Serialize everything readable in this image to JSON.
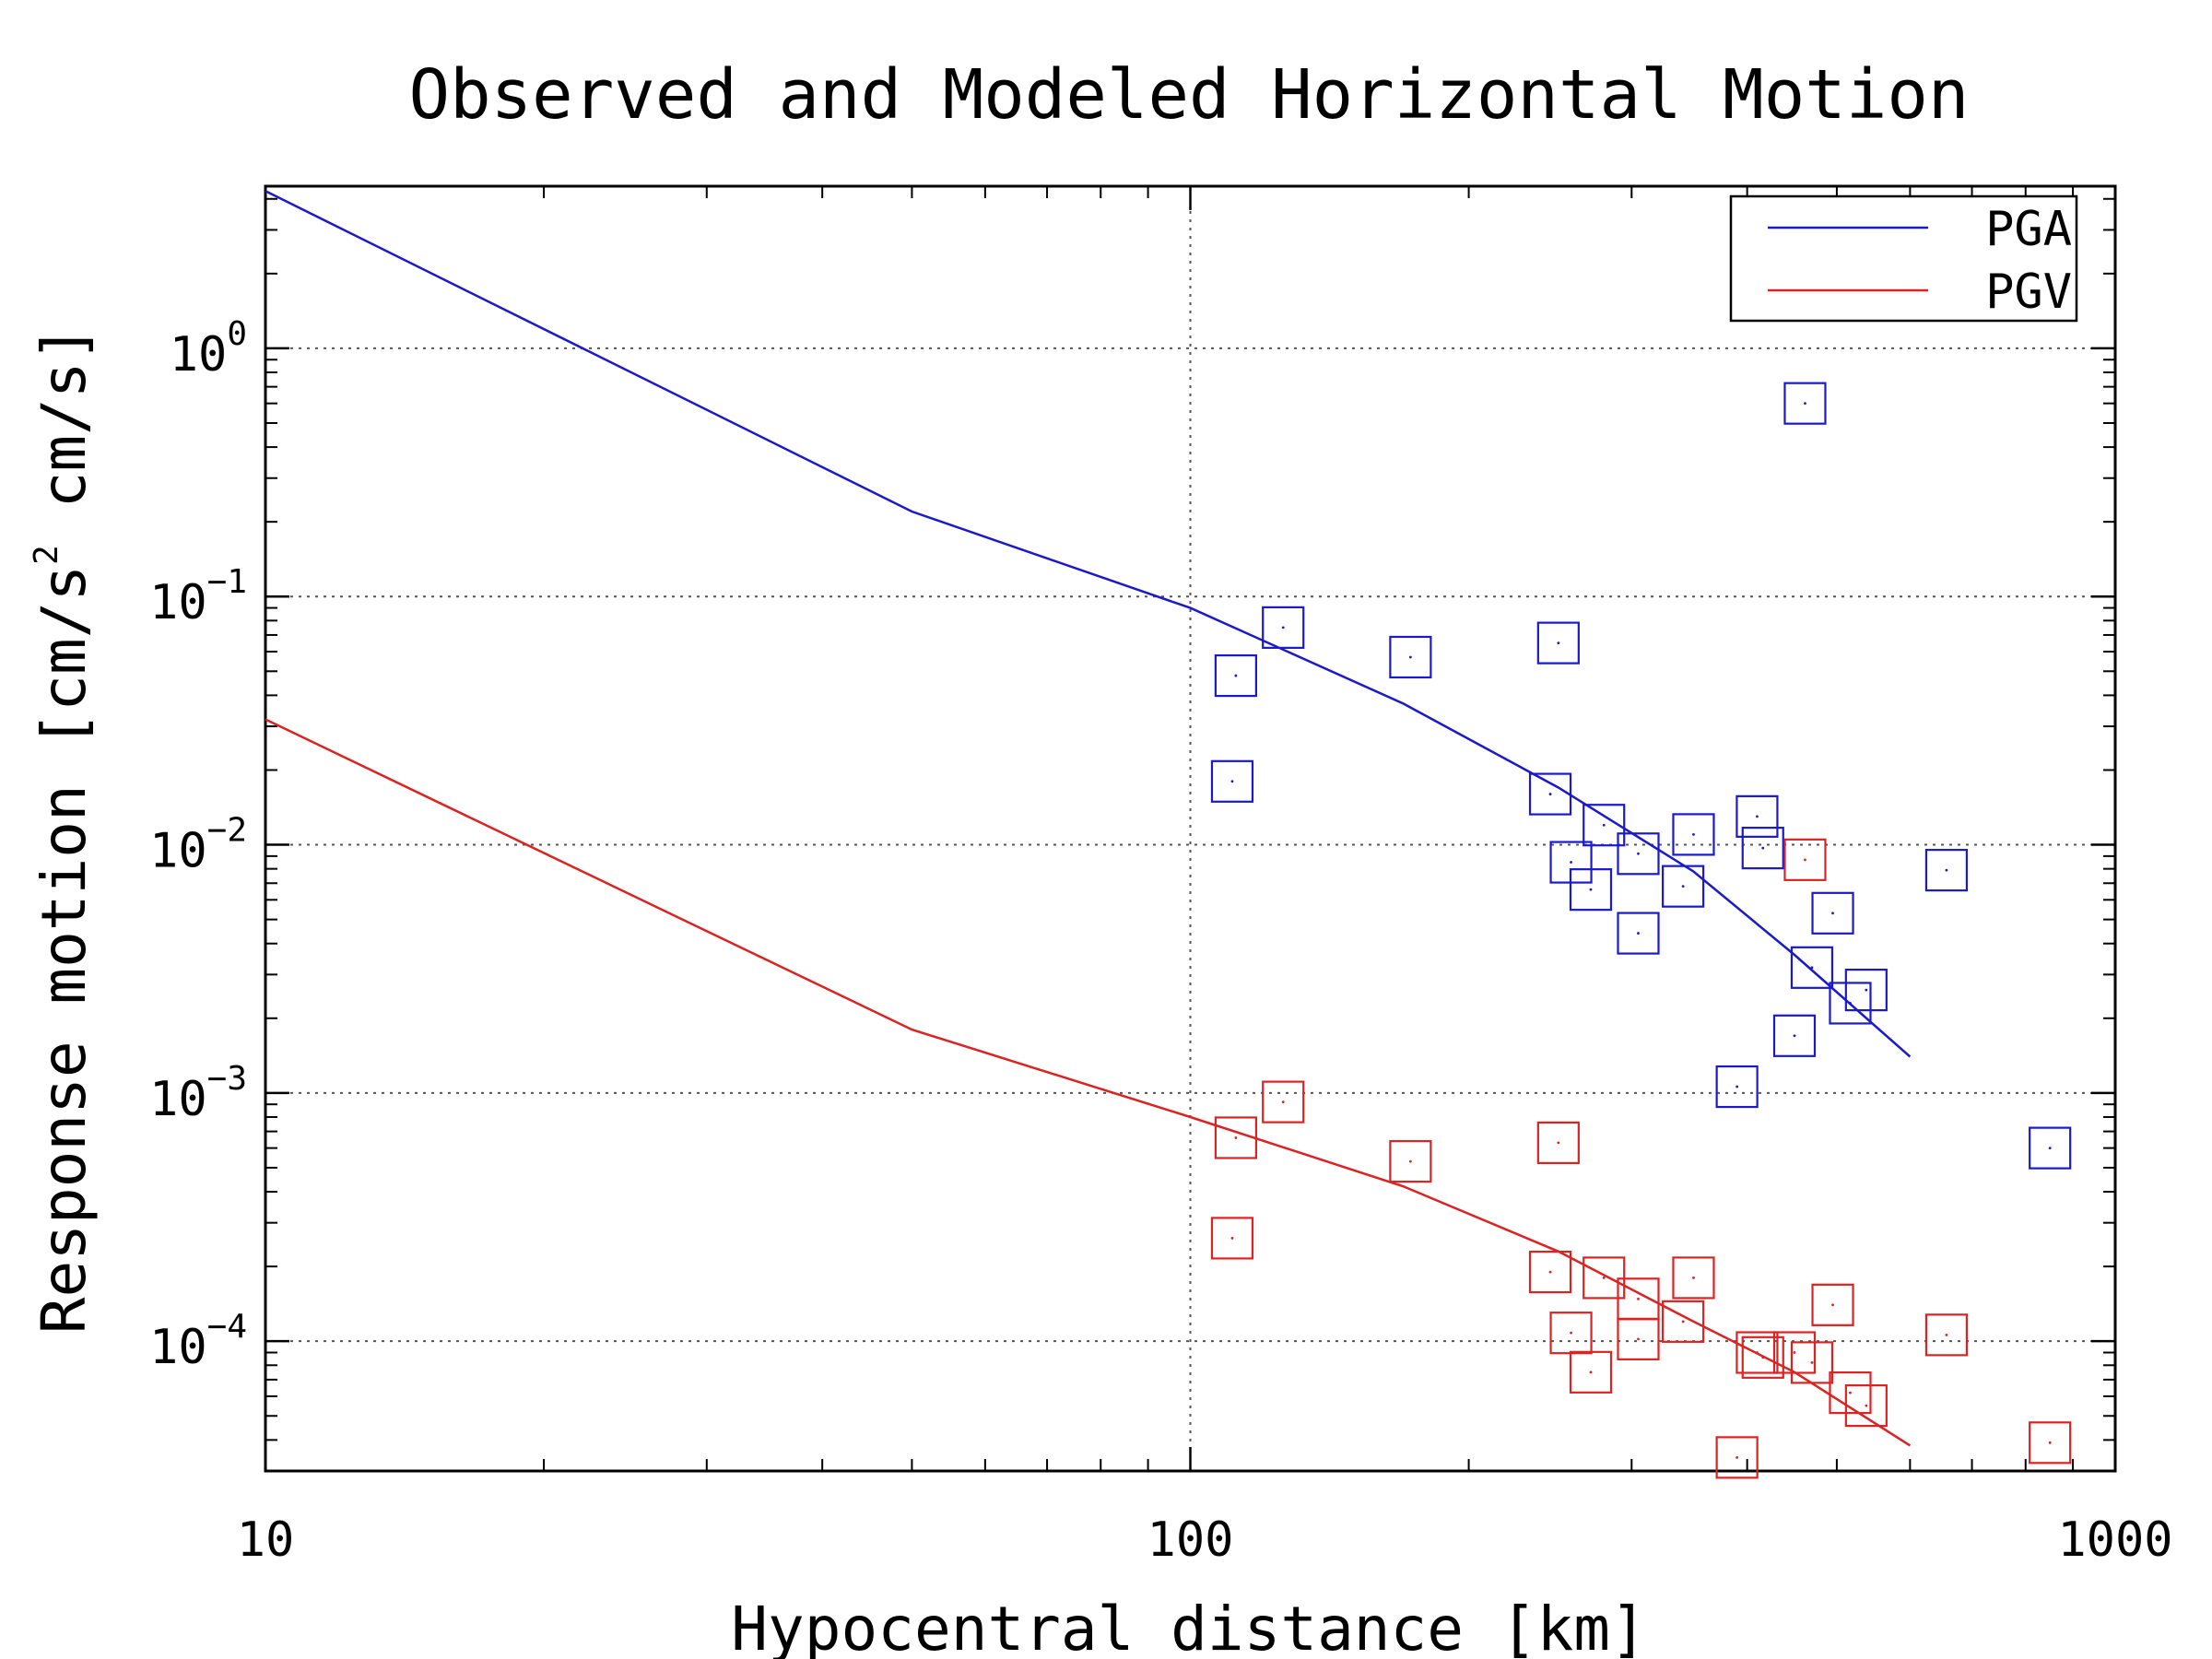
{
  "chart_data": {
    "type": "scatter",
    "title": "Observed and Modeled Horizontal Motion",
    "xlabel": "Hypocentral distance [km]",
    "ylabel": "Response motion  [cm/s",
    "ylabel_sup": "2",
    "ylabel_tail": "  cm/s]",
    "xscale": "log",
    "yscale": "log",
    "xlim": [
      10,
      1000
    ],
    "ylim": [
      3e-05,
      4.5
    ],
    "xticks": [
      {
        "value": 10,
        "label": "10"
      },
      {
        "value": 100,
        "label": "100"
      },
      {
        "value": 1000,
        "label": "1000"
      }
    ],
    "yticks": [
      {
        "value": 1,
        "base": "10",
        "exp": "0"
      },
      {
        "value": 0.1,
        "base": "10",
        "exp": "−1"
      },
      {
        "value": 0.01,
        "base": "10",
        "exp": "−2"
      },
      {
        "value": 0.001,
        "base": "10",
        "exp": "−3"
      },
      {
        "value": 0.0001,
        "base": "10",
        "exp": "−4"
      }
    ],
    "grid": "dotted",
    "legend_position": "top-right",
    "series": [
      {
        "name": "PGA",
        "color": "#1a1acc",
        "model_line": [
          [
            10,
            4.3
          ],
          [
            50,
            0.22
          ],
          [
            100,
            0.09
          ],
          [
            170,
            0.037
          ],
          [
            250,
            0.017
          ],
          [
            350,
            0.0078
          ],
          [
            450,
            0.0036
          ],
          [
            600,
            0.0014
          ]
        ],
        "points": [
          [
            112,
            0.048
          ],
          [
            126,
            0.075
          ],
          [
            111,
            0.018
          ],
          [
            173,
            0.057
          ],
          [
            250,
            0.065
          ],
          [
            462,
            0.6
          ],
          [
            245,
            0.016
          ],
          [
            280,
            0.012
          ],
          [
            258,
            0.0085
          ],
          [
            271,
            0.0066
          ],
          [
            305,
            0.0092
          ],
          [
            305,
            0.0044
          ],
          [
            350,
            0.011
          ],
          [
            341,
            0.0068
          ],
          [
            410,
            0.013
          ],
          [
            416,
            0.0097
          ],
          [
            495,
            0.0053
          ],
          [
            470,
            0.0032
          ],
          [
            538,
            0.0026
          ],
          [
            517,
            0.0023
          ],
          [
            450,
            0.0017
          ],
          [
            390,
            0.00106
          ],
          [
            657,
            0.0079
          ],
          [
            850,
            0.0006
          ]
        ]
      },
      {
        "name": "PGV",
        "color": "#dd2222",
        "model_line": [
          [
            10,
            0.032
          ],
          [
            50,
            0.0018
          ],
          [
            100,
            0.0008
          ],
          [
            170,
            0.00042
          ],
          [
            250,
            0.00023
          ],
          [
            350,
            0.00012
          ],
          [
            450,
            7.5e-05
          ],
          [
            600,
            3.8e-05
          ]
        ],
        "points": [
          [
            112,
            0.00066
          ],
          [
            126,
            0.00092
          ],
          [
            111,
            0.00026
          ],
          [
            173,
            0.00053
          ],
          [
            250,
            0.00063
          ],
          [
            462,
            0.0087
          ],
          [
            245,
            0.00019
          ],
          [
            280,
            0.00018
          ],
          [
            258,
            0.000108
          ],
          [
            271,
            7.5e-05
          ],
          [
            305,
            0.000148
          ],
          [
            305,
            0.000102
          ],
          [
            350,
            0.00018
          ],
          [
            341,
            0.00012
          ],
          [
            410,
            9e-05
          ],
          [
            416,
            8.6e-05
          ],
          [
            495,
            0.00014
          ],
          [
            470,
            8.2e-05
          ],
          [
            538,
            5.5e-05
          ],
          [
            517,
            6.2e-05
          ],
          [
            450,
            9e-05
          ],
          [
            390,
            3.4e-05
          ],
          [
            657,
            0.000106
          ],
          [
            850,
            3.9e-05
          ]
        ]
      }
    ]
  }
}
